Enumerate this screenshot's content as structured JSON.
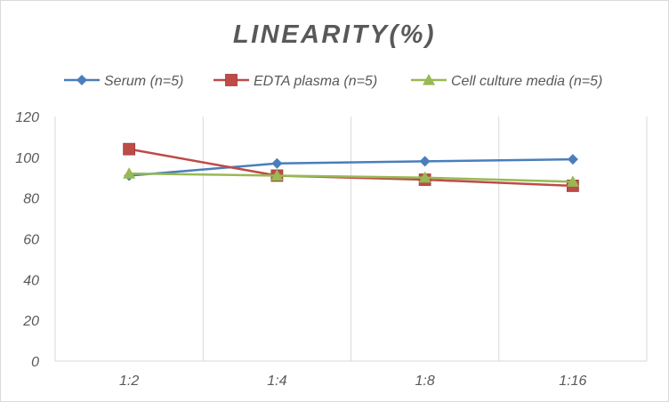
{
  "chart_data": {
    "type": "line",
    "title": "LINEARITY(%)",
    "categories": [
      "1:2",
      "1:4",
      "1:8",
      "1:16"
    ],
    "series": [
      {
        "name": "Serum (n=5)",
        "values": [
          91,
          97,
          98,
          99
        ],
        "color": "#4a7ebb",
        "marker": "diamond"
      },
      {
        "name": "EDTA plasma (n=5)",
        "values": [
          104,
          91,
          89,
          86
        ],
        "color": "#be4b48",
        "marker": "square"
      },
      {
        "name": "Cell culture media (n=5)",
        "values": [
          92,
          91,
          90,
          88
        ],
        "color": "#98b954",
        "marker": "triangle"
      }
    ],
    "ylim": [
      0,
      120
    ],
    "yticks": [
      0,
      20,
      40,
      60,
      80,
      100,
      120
    ],
    "xlabel": "",
    "ylabel": "",
    "grid": "vertical",
    "legend_position": "top"
  }
}
